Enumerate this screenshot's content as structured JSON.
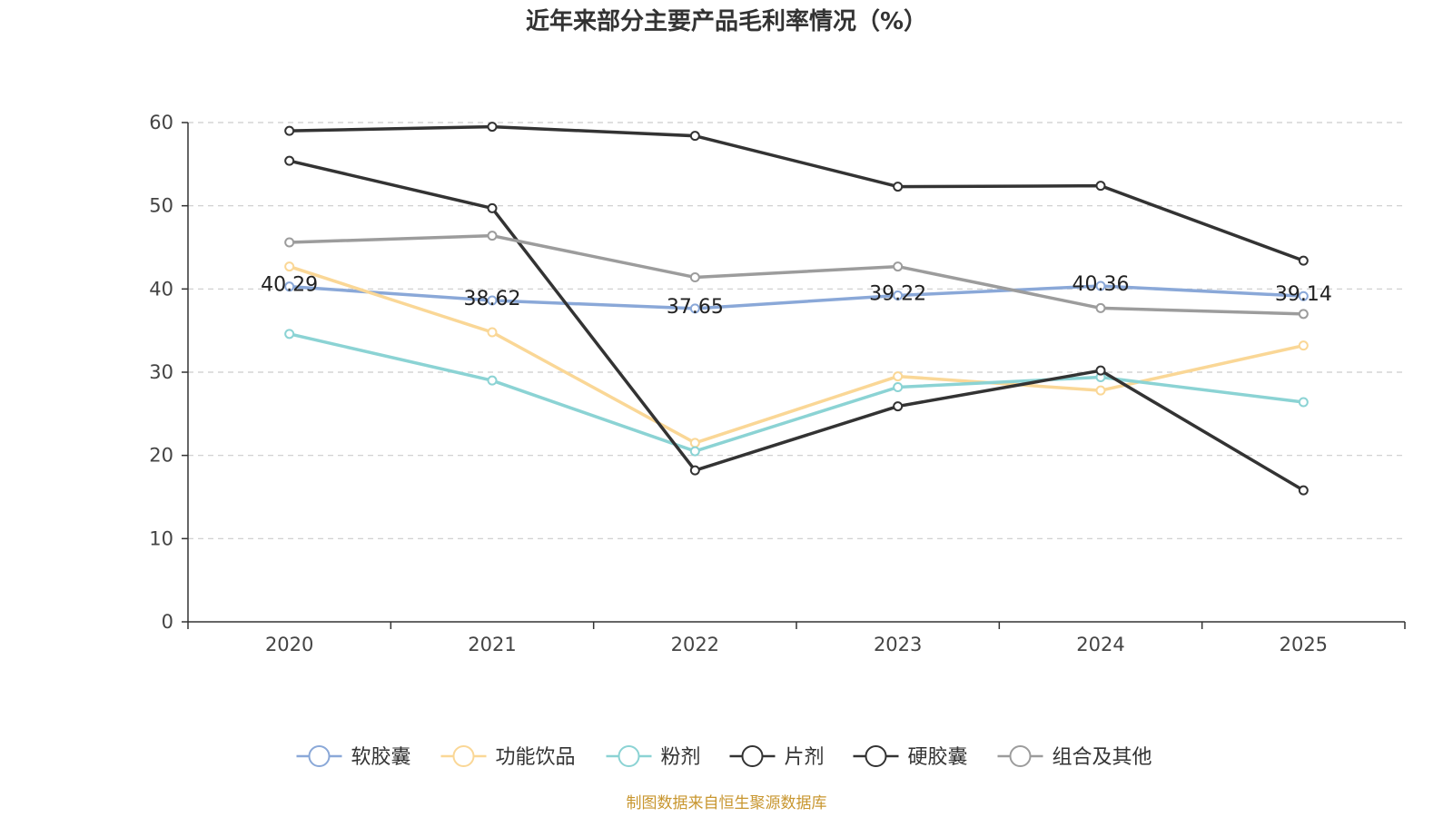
{
  "chart_data": {
    "type": "line",
    "title": "近年来部分主要产品毛利率情况（%）",
    "categories": [
      "2020",
      "2021",
      "2022",
      "2023",
      "2024",
      "2025"
    ],
    "ylim": [
      0,
      60
    ],
    "yticks": [
      "0",
      "10",
      "20",
      "30",
      "40",
      "50",
      "60"
    ],
    "grid": true,
    "legend_position": "bottom",
    "source": "制图数据来自恒生聚源数据库",
    "series": [
      {
        "name": "软胶囊",
        "color": "#8aa8d8",
        "values": [
          40.29,
          38.62,
          37.65,
          39.22,
          40.36,
          39.14
        ],
        "labels": [
          "40.29",
          "38.62",
          "37.65",
          "39.22",
          "40.36",
          "39.14"
        ]
      },
      {
        "name": "功能饮品",
        "color": "#fad796",
        "values": [
          42.7,
          34.8,
          21.5,
          29.5,
          27.8,
          33.2
        ]
      },
      {
        "name": "粉剂",
        "color": "#8bd3d4",
        "values": [
          34.6,
          29.0,
          20.5,
          28.2,
          29.4,
          26.4
        ]
      },
      {
        "name": "片剂",
        "color": "#333333",
        "values": [
          55.4,
          49.7,
          18.2,
          25.9,
          30.2,
          15.8
        ]
      },
      {
        "name": "硬胶囊",
        "color": "#333333",
        "values": [
          59.0,
          59.5,
          58.4,
          52.3,
          52.4,
          43.4
        ]
      },
      {
        "name": "组合及其他",
        "color": "#9c9c9c",
        "values": [
          45.6,
          46.4,
          41.4,
          42.7,
          37.7,
          37.0
        ]
      }
    ]
  }
}
